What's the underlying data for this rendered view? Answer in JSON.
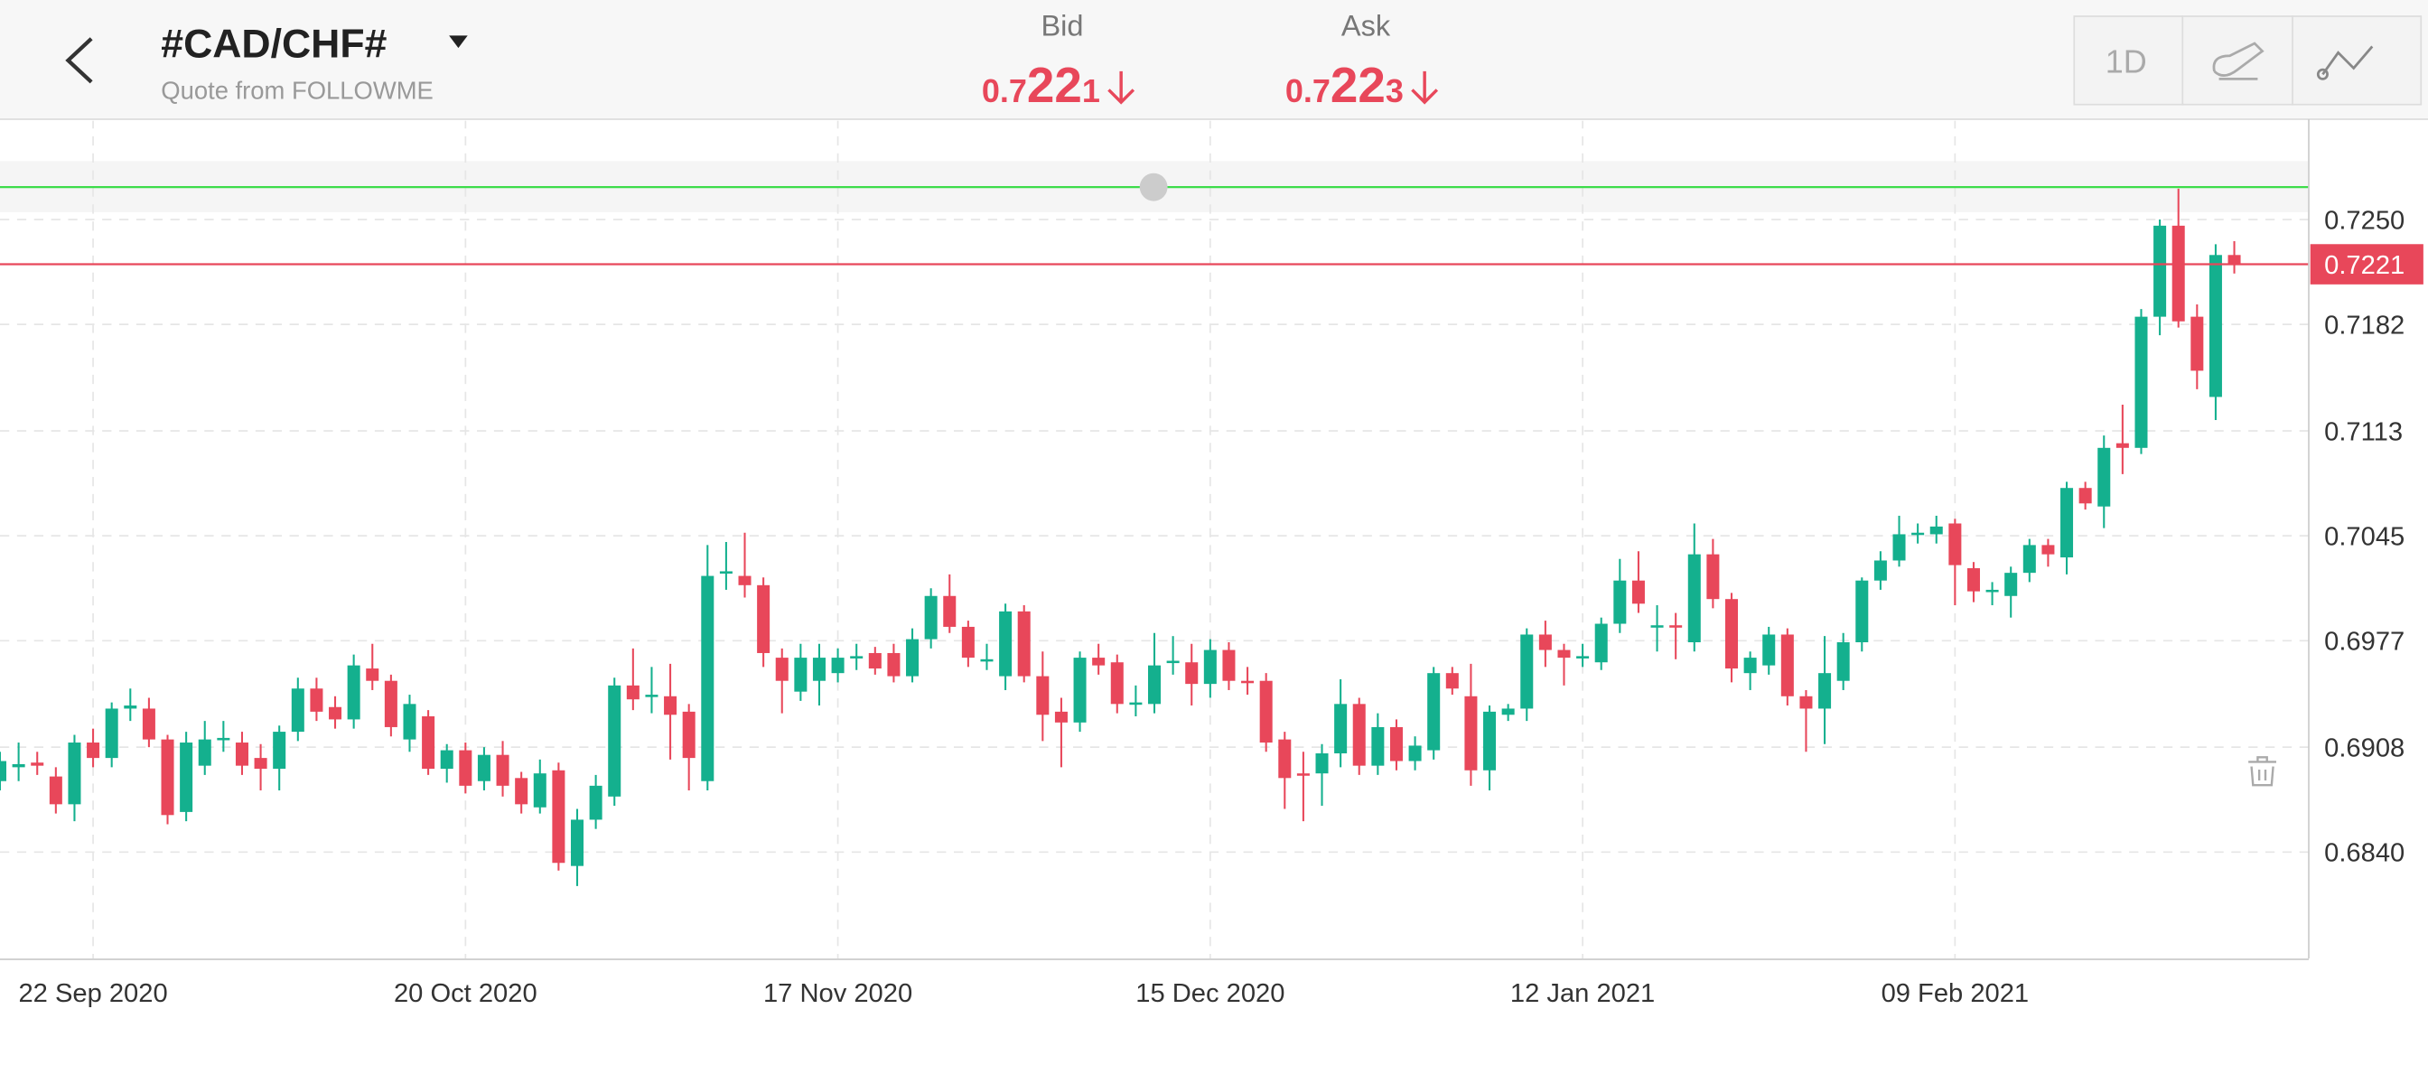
{
  "header": {
    "symbol": "#CAD/CHF#",
    "source": "Quote from FOLLOWME",
    "bid_label": "Bid",
    "bid": "0.7221",
    "ask_label": "Ask",
    "ask": "0.7223",
    "timeframe": "1D"
  },
  "chart_data": {
    "type": "candlestick",
    "open": [
      0.6886,
      0.6895,
      0.6898,
      0.6889,
      0.6871,
      0.6911,
      0.6901,
      0.6933,
      0.6933,
      0.6913,
      0.6866,
      0.6896,
      0.6913,
      0.6911,
      0.6901,
      0.6894,
      0.6918,
      0.6946,
      0.6934,
      0.6926,
      0.6959,
      0.6951,
      0.6913,
      0.6928,
      0.6894,
      0.6906,
      0.6886,
      0.6903,
      0.6888,
      0.6869,
      0.6893,
      0.6831,
      0.6861,
      0.6876,
      0.6948,
      0.6941,
      0.6941,
      0.6931,
      0.6886,
      0.7021,
      0.7019,
      0.7013,
      0.6966,
      0.6944,
      0.6951,
      0.6956,
      0.6966,
      0.6969,
      0.6969,
      0.6954,
      0.6978,
      0.7006,
      0.6986,
      0.6964,
      0.6954,
      0.6996,
      0.6954,
      0.6931,
      0.6924,
      0.6966,
      0.6963,
      0.6936,
      0.6936,
      0.6963,
      0.6963,
      0.6949,
      0.6971,
      0.6951,
      0.6951,
      0.6913,
      0.6891,
      0.6891,
      0.6904,
      0.6936,
      0.6896,
      0.6921,
      0.6899,
      0.6906,
      0.6956,
      0.6941,
      0.6893,
      0.6929,
      0.6933,
      0.6981,
      0.6971,
      0.6966,
      0.6963,
      0.6988,
      0.7016,
      0.6986,
      0.6987,
      0.6976,
      0.7033,
      0.7004,
      0.6956,
      0.6961,
      0.6981,
      0.6941,
      0.6933,
      0.6951,
      0.6976,
      0.7016,
      0.7029,
      0.7046,
      0.7046,
      0.7053,
      0.7024,
      0.7009,
      0.7006,
      0.7021,
      0.7039,
      0.7031,
      0.7076,
      0.7064,
      0.7105,
      0.7102,
      0.7187,
      0.7246,
      0.7187,
      0.7135,
      0.7227
    ],
    "high": [
      0.6905,
      0.6911,
      0.6905,
      0.6895,
      0.6916,
      0.692,
      0.6937,
      0.6946,
      0.694,
      0.6916,
      0.6918,
      0.6925,
      0.6925,
      0.6918,
      0.691,
      0.6922,
      0.6953,
      0.6953,
      0.6941,
      0.6968,
      0.6975,
      0.6955,
      0.6942,
      0.6932,
      0.691,
      0.6911,
      0.6908,
      0.6912,
      0.6892,
      0.69,
      0.6898,
      0.6868,
      0.689,
      0.6953,
      0.6972,
      0.696,
      0.6962,
      0.6936,
      0.7039,
      0.7041,
      0.7047,
      0.7018,
      0.6972,
      0.6975,
      0.6975,
      0.6972,
      0.6975,
      0.6973,
      0.6975,
      0.6985,
      0.7011,
      0.702,
      0.699,
      0.6975,
      0.7001,
      0.7,
      0.697,
      0.694,
      0.697,
      0.6975,
      0.6968,
      0.6948,
      0.6982,
      0.698,
      0.6975,
      0.6978,
      0.6976,
      0.696,
      0.6956,
      0.6918,
      0.6905,
      0.691,
      0.6952,
      0.694,
      0.693,
      0.6926,
      0.6915,
      0.696,
      0.696,
      0.6962,
      0.6935,
      0.6936,
      0.6985,
      0.699,
      0.6975,
      0.6975,
      0.6992,
      0.703,
      0.7035,
      0.7,
      0.6995,
      0.7053,
      0.7043,
      0.7008,
      0.697,
      0.6986,
      0.6985,
      0.6945,
      0.698,
      0.6982,
      0.7018,
      0.7035,
      0.7058,
      0.7053,
      0.7058,
      0.7056,
      0.7028,
      0.7015,
      0.7025,
      0.7043,
      0.7043,
      0.708,
      0.708,
      0.711,
      0.713,
      0.7192,
      0.725,
      0.727,
      0.7195,
      0.7234,
      0.7236
    ],
    "low": [
      0.688,
      0.6886,
      0.689,
      0.6865,
      0.686,
      0.6895,
      0.6895,
      0.6925,
      0.6908,
      0.6858,
      0.686,
      0.689,
      0.6905,
      0.689,
      0.688,
      0.688,
      0.6912,
      0.6925,
      0.692,
      0.692,
      0.6945,
      0.6915,
      0.6905,
      0.689,
      0.6885,
      0.6878,
      0.688,
      0.6876,
      0.6865,
      0.6865,
      0.6828,
      0.6818,
      0.6855,
      0.687,
      0.6932,
      0.693,
      0.69,
      0.688,
      0.688,
      0.701,
      0.7005,
      0.696,
      0.693,
      0.6938,
      0.6935,
      0.695,
      0.6958,
      0.6955,
      0.695,
      0.695,
      0.6972,
      0.6982,
      0.696,
      0.6958,
      0.6945,
      0.695,
      0.6912,
      0.6895,
      0.6918,
      0.6955,
      0.693,
      0.6928,
      0.693,
      0.6955,
      0.6935,
      0.694,
      0.6945,
      0.6942,
      0.6905,
      0.6868,
      0.686,
      0.687,
      0.6895,
      0.689,
      0.689,
      0.6893,
      0.6893,
      0.69,
      0.6942,
      0.6883,
      0.688,
      0.6925,
      0.6925,
      0.696,
      0.6948,
      0.696,
      0.6958,
      0.6982,
      0.6995,
      0.697,
      0.6965,
      0.697,
      0.6998,
      0.695,
      0.6945,
      0.6955,
      0.6935,
      0.6905,
      0.691,
      0.6945,
      0.697,
      0.701,
      0.7025,
      0.704,
      0.704,
      0.7,
      0.7002,
      0.7,
      0.6992,
      0.7015,
      0.7025,
      0.702,
      0.7062,
      0.705,
      0.7085,
      0.7098,
      0.7175,
      0.718,
      0.714,
      0.712,
      0.7215
    ],
    "close": [
      0.6899,
      0.6897,
      0.6896,
      0.6871,
      0.6911,
      0.6901,
      0.6933,
      0.6935,
      0.6913,
      0.6864,
      0.6911,
      0.6913,
      0.6914,
      0.6896,
      0.6894,
      0.6918,
      0.6946,
      0.6931,
      0.6926,
      0.6961,
      0.6951,
      0.6921,
      0.6936,
      0.6894,
      0.6906,
      0.6883,
      0.6903,
      0.6883,
      0.6871,
      0.6891,
      0.6833,
      0.6861,
      0.6883,
      0.6948,
      0.6939,
      0.6942,
      0.6929,
      0.6901,
      0.7019,
      0.7022,
      0.7013,
      0.6969,
      0.6951,
      0.6966,
      0.6966,
      0.6966,
      0.6967,
      0.6959,
      0.6954,
      0.6978,
      0.7006,
      0.6986,
      0.6966,
      0.6965,
      0.6996,
      0.6954,
      0.6929,
      0.6924,
      0.6966,
      0.6961,
      0.6936,
      0.6937,
      0.6961,
      0.6964,
      0.6949,
      0.6971,
      0.6951,
      0.695,
      0.6911,
      0.6888,
      0.689,
      0.6904,
      0.6936,
      0.6896,
      0.6921,
      0.6899,
      0.6909,
      0.6956,
      0.6946,
      0.6893,
      0.6931,
      0.6933,
      0.6981,
      0.6971,
      0.6966,
      0.6967,
      0.6988,
      0.7016,
      0.7001,
      0.6987,
      0.6986,
      0.7033,
      0.7004,
      0.6959,
      0.6966,
      0.6981,
      0.6941,
      0.6933,
      0.6956,
      0.6976,
      0.7016,
      0.7029,
      0.7046,
      0.7047,
      0.7051,
      0.7026,
      0.7009,
      0.701,
      0.7021,
      0.7039,
      0.7033,
      0.7076,
      0.7066,
      0.7102,
      0.7102,
      0.7187,
      0.7246,
      0.7184,
      0.7152,
      0.7227,
      0.7221
    ],
    "up_color": "#14b08e",
    "down_color": "#e8475a",
    "xlim": [
      0,
      124
    ],
    "xticks": [
      {
        "value": 5,
        "label": "22 Sep 2020"
      },
      {
        "value": 25,
        "label": "20 Oct 2020"
      },
      {
        "value": 45,
        "label": "17 Nov 2020"
      },
      {
        "value": 65,
        "label": "15 Dec 2020"
      },
      {
        "value": 85,
        "label": "12 Jan 2021"
      },
      {
        "value": 105,
        "label": "09 Feb 2021"
      }
    ],
    "ylim": [
      0.677,
      0.7315
    ],
    "yticks": [
      {
        "value": 0.725,
        "label": "0.7250"
      },
      0.7182,
      0.7113,
      0.7045,
      0.6977,
      0.6908,
      {
        "value": 0.684,
        "label": "0.6840"
      }
    ],
    "grid": true,
    "current_price": 0.7221,
    "current_price_color": "#e8475a",
    "drawn_line": 0.7271,
    "drawn_line_color": "#3ddc4a"
  }
}
